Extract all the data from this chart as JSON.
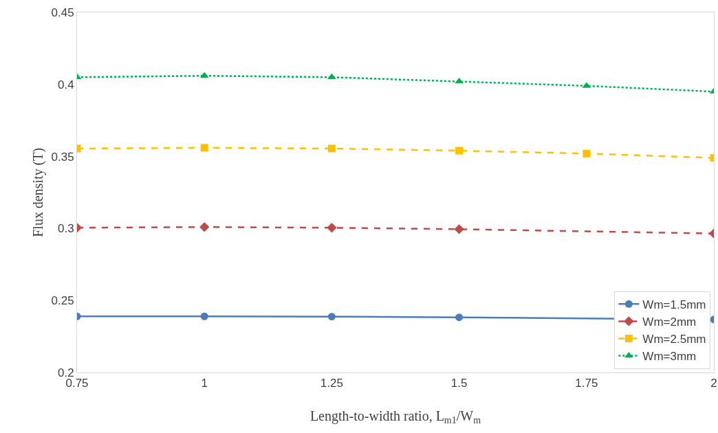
{
  "chart_data": {
    "type": "line",
    "xlabel": "Length-to-width ratio, L$_{m1}$/W$_{m}$",
    "ylabel": "Flux density (T)",
    "x": [
      0.75,
      1,
      1.25,
      1.5,
      1.75,
      2
    ],
    "series": [
      {
        "name": "Wm=1.5mm",
        "color": "#4a7ebb",
        "marker": "circle",
        "line_style": "solid",
        "values": [
          0.239,
          0.239,
          0.2388,
          0.2383,
          null,
          0.2368
        ]
      },
      {
        "name": "Wm=2mm",
        "color": "#be4b48",
        "marker": "diamond",
        "line_style": "dashed",
        "values": [
          0.3005,
          0.301,
          0.3005,
          0.2995,
          null,
          0.2965
        ]
      },
      {
        "name": "Wm=2.5mm",
        "color": "#ffc000",
        "marker": "square",
        "line_style": "dashed",
        "values": [
          0.3555,
          0.356,
          0.3555,
          0.354,
          0.352,
          0.349
        ]
      },
      {
        "name": "Wm=3mm",
        "color": "#00b050",
        "marker": "triangle",
        "line_style": "dotted",
        "values": [
          0.405,
          0.406,
          0.405,
          0.402,
          0.399,
          0.395
        ]
      }
    ],
    "xlim": [
      0.75,
      2
    ],
    "xticks": [
      0.75,
      1,
      1.25,
      1.5,
      1.75,
      2
    ],
    "ylim": [
      0.2,
      0.45
    ],
    "yticks": [
      0.2,
      0.25,
      0.3,
      0.35,
      0.4,
      0.45
    ],
    "grid": false,
    "legend": "bottom right"
  }
}
